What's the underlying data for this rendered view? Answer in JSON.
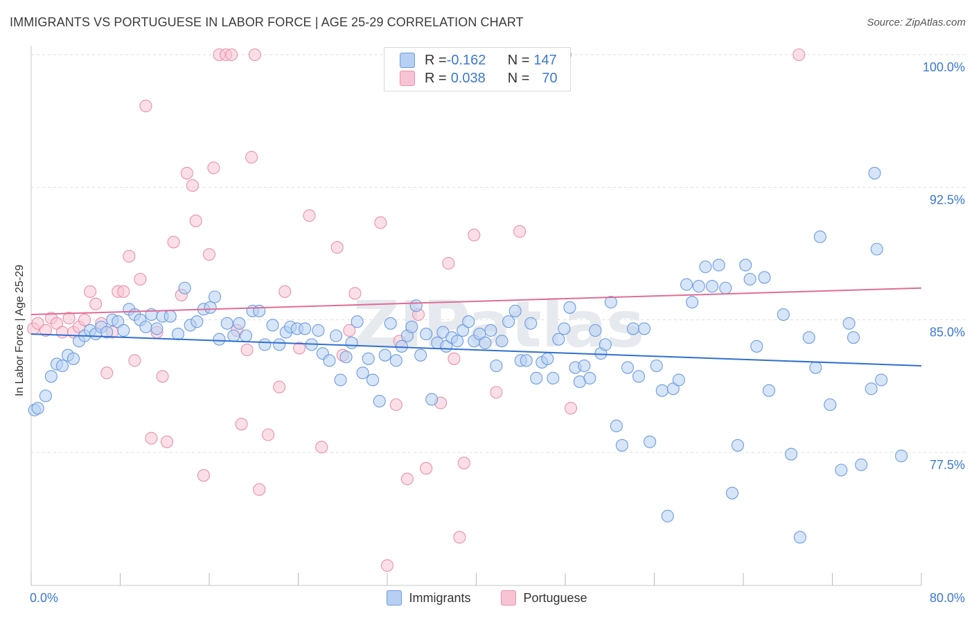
{
  "title": "IMMIGRANTS VS PORTUGUESE IN LABOR FORCE | AGE 25-29 CORRELATION CHART",
  "source": "Source: ZipAtlas.com",
  "watermark": "ZIPatlas",
  "colors": {
    "blue_fill": "#b7cff2",
    "blue_stroke": "#6a9be0",
    "blue_line": "#2f6fd0",
    "pink_fill": "#f7c4d4",
    "pink_stroke": "#e98fab",
    "pink_line": "#e06c93",
    "tick_text": "#3a78d4",
    "grid": "#dddddd"
  },
  "legend": {
    "rows": [
      {
        "r_label": "R = ",
        "r_value": "-0.162",
        "n_label": "N = ",
        "n_value": "147"
      },
      {
        "r_label": "R = ",
        "r_value": "0.038",
        "n_label": "N = ",
        "n_value": "70"
      }
    ]
  },
  "bottom_legend": [
    "Immigrants",
    "Portuguese"
  ],
  "chart_data": {
    "type": "scatter",
    "title": "IMMIGRANTS VS PORTUGUESE IN LABOR FORCE | AGE 25-29 CORRELATION CHART",
    "xlabel": "",
    "ylabel": "In Labor Force | Age 25-29",
    "xlim": [
      0,
      80
    ],
    "ylim": [
      71.0,
      101.0
    ],
    "x_tick_labels": [
      "0.0%",
      "80.0%"
    ],
    "y_ticks": [
      77.5,
      85.0,
      92.5,
      100.0
    ],
    "y_tick_labels": [
      "77.5%",
      "85.0%",
      "92.5%",
      "100.0%"
    ],
    "grid": "horizontal dashed",
    "legend_position": "top-center",
    "series": [
      {
        "name": "Immigrants",
        "trend": [
          [
            0,
            84.2
          ],
          [
            80,
            82.4
          ]
        ],
        "points": [
          [
            0.3,
            79.9
          ],
          [
            0.6,
            80.0
          ],
          [
            1.3,
            80.7
          ],
          [
            1.8,
            81.8
          ],
          [
            2.3,
            82.5
          ],
          [
            2.8,
            82.4
          ],
          [
            3.3,
            83.0
          ],
          [
            3.8,
            82.8
          ],
          [
            4.3,
            83.8
          ],
          [
            4.8,
            84.1
          ],
          [
            5.3,
            84.4
          ],
          [
            5.8,
            84.2
          ],
          [
            6.3,
            84.6
          ],
          [
            6.8,
            84.3
          ],
          [
            7.3,
            85.0
          ],
          [
            7.8,
            84.9
          ],
          [
            8.3,
            84.4
          ],
          [
            8.8,
            85.6
          ],
          [
            9.3,
            85.3
          ],
          [
            9.8,
            85.0
          ],
          [
            10.3,
            84.6
          ],
          [
            10.8,
            85.3
          ],
          [
            11.3,
            84.5
          ],
          [
            11.8,
            85.2
          ],
          [
            12.5,
            85.2
          ],
          [
            13.2,
            84.2
          ],
          [
            13.8,
            86.8
          ],
          [
            14.3,
            84.7
          ],
          [
            14.9,
            84.9
          ],
          [
            15.5,
            85.6
          ],
          [
            16.1,
            85.7
          ],
          [
            16.5,
            86.3
          ],
          [
            16.9,
            83.9
          ],
          [
            17.6,
            84.8
          ],
          [
            18.2,
            84.1
          ],
          [
            18.7,
            84.8
          ],
          [
            19.3,
            84.1
          ],
          [
            19.9,
            85.5
          ],
          [
            20.5,
            85.5
          ],
          [
            21.0,
            83.6
          ],
          [
            21.7,
            84.7
          ],
          [
            22.3,
            83.6
          ],
          [
            22.9,
            84.3
          ],
          [
            23.3,
            84.6
          ],
          [
            23.9,
            84.5
          ],
          [
            24.6,
            84.5
          ],
          [
            25.2,
            83.6
          ],
          [
            25.8,
            84.4
          ],
          [
            26.2,
            83.1
          ],
          [
            26.8,
            82.7
          ],
          [
            27.4,
            84.1
          ],
          [
            27.8,
            81.6
          ],
          [
            28.3,
            82.9
          ],
          [
            28.8,
            83.7
          ],
          [
            29.3,
            84.9
          ],
          [
            29.8,
            82.0
          ],
          [
            30.3,
            82.8
          ],
          [
            30.7,
            81.6
          ],
          [
            31.3,
            80.4
          ],
          [
            31.8,
            83.0
          ],
          [
            32.3,
            84.8
          ],
          [
            32.8,
            82.7
          ],
          [
            33.3,
            83.5
          ],
          [
            33.8,
            84.1
          ],
          [
            34.2,
            84.6
          ],
          [
            34.6,
            85.8
          ],
          [
            35.0,
            83.0
          ],
          [
            35.5,
            84.2
          ],
          [
            36.0,
            80.5
          ],
          [
            36.5,
            83.7
          ],
          [
            37.0,
            84.3
          ],
          [
            37.3,
            83.5
          ],
          [
            37.8,
            84.0
          ],
          [
            38.3,
            83.8
          ],
          [
            38.8,
            84.4
          ],
          [
            39.3,
            84.9
          ],
          [
            39.8,
            83.8
          ],
          [
            40.3,
            84.2
          ],
          [
            40.8,
            83.7
          ],
          [
            41.3,
            84.4
          ],
          [
            41.8,
            82.4
          ],
          [
            42.3,
            83.8
          ],
          [
            42.9,
            84.9
          ],
          [
            43.5,
            85.5
          ],
          [
            44.0,
            82.7
          ],
          [
            44.5,
            82.7
          ],
          [
            44.9,
            84.8
          ],
          [
            45.4,
            81.7
          ],
          [
            45.9,
            82.6
          ],
          [
            46.4,
            82.8
          ],
          [
            46.9,
            81.7
          ],
          [
            47.4,
            83.9
          ],
          [
            47.9,
            84.5
          ],
          [
            48.4,
            85.7
          ],
          [
            48.9,
            82.3
          ],
          [
            49.3,
            81.5
          ],
          [
            49.7,
            82.4
          ],
          [
            50.2,
            81.7
          ],
          [
            50.7,
            84.4
          ],
          [
            51.2,
            83.1
          ],
          [
            51.6,
            83.6
          ],
          [
            52.1,
            86.0
          ],
          [
            52.6,
            79.0
          ],
          [
            53.1,
            77.9
          ],
          [
            53.6,
            82.3
          ],
          [
            54.1,
            84.5
          ],
          [
            54.6,
            81.8
          ],
          [
            55.1,
            84.5
          ],
          [
            55.6,
            78.1
          ],
          [
            56.2,
            82.4
          ],
          [
            56.7,
            81.0
          ],
          [
            57.2,
            73.9
          ],
          [
            57.7,
            81.1
          ],
          [
            58.2,
            81.6
          ],
          [
            58.9,
            87.0
          ],
          [
            59.4,
            86.0
          ],
          [
            60.0,
            86.9
          ],
          [
            60.6,
            88.0
          ],
          [
            61.2,
            86.9
          ],
          [
            61.8,
            88.1
          ],
          [
            62.4,
            86.8
          ],
          [
            63.0,
            75.2
          ],
          [
            63.5,
            77.9
          ],
          [
            64.2,
            88.1
          ],
          [
            64.6,
            87.3
          ],
          [
            65.2,
            83.5
          ],
          [
            65.9,
            87.4
          ],
          [
            66.3,
            81.0
          ],
          [
            67.6,
            85.3
          ],
          [
            68.3,
            77.4
          ],
          [
            69.1,
            72.7
          ],
          [
            69.9,
            84.0
          ],
          [
            70.5,
            82.3
          ],
          [
            70.9,
            89.7
          ],
          [
            71.8,
            80.2
          ],
          [
            72.8,
            76.5
          ],
          [
            73.5,
            84.8
          ],
          [
            73.9,
            84.0
          ],
          [
            74.6,
            76.8
          ],
          [
            75.5,
            81.1
          ],
          [
            76.0,
            89.0
          ],
          [
            76.4,
            81.6
          ],
          [
            78.2,
            77.3
          ],
          [
            75.8,
            93.3
          ]
        ]
      },
      {
        "name": "Portuguese",
        "trend": [
          [
            0,
            85.3
          ],
          [
            80,
            86.8
          ]
        ],
        "points": [
          [
            0.2,
            84.5
          ],
          [
            0.6,
            84.8
          ],
          [
            1.3,
            84.4
          ],
          [
            1.8,
            85.1
          ],
          [
            2.3,
            84.8
          ],
          [
            2.8,
            84.3
          ],
          [
            3.4,
            85.1
          ],
          [
            3.8,
            84.3
          ],
          [
            4.3,
            84.6
          ],
          [
            4.8,
            85.0
          ],
          [
            5.3,
            86.6
          ],
          [
            5.8,
            85.9
          ],
          [
            6.3,
            84.8
          ],
          [
            6.8,
            82.0
          ],
          [
            7.3,
            84.3
          ],
          [
            7.8,
            86.6
          ],
          [
            8.3,
            86.6
          ],
          [
            8.8,
            88.6
          ],
          [
            9.3,
            82.7
          ],
          [
            9.8,
            87.3
          ],
          [
            10.3,
            97.1
          ],
          [
            10.8,
            78.3
          ],
          [
            11.3,
            84.3
          ],
          [
            11.8,
            81.8
          ],
          [
            12.2,
            78.1
          ],
          [
            12.8,
            89.4
          ],
          [
            13.5,
            86.4
          ],
          [
            14.0,
            93.3
          ],
          [
            14.5,
            92.6
          ],
          [
            14.8,
            90.6
          ],
          [
            15.5,
            76.2
          ],
          [
            16.0,
            88.7
          ],
          [
            16.4,
            93.6
          ],
          [
            16.9,
            100.0
          ],
          [
            17.5,
            100.0
          ],
          [
            18.0,
            100.0
          ],
          [
            18.5,
            84.4
          ],
          [
            18.9,
            79.1
          ],
          [
            19.4,
            83.3
          ],
          [
            19.8,
            94.2
          ],
          [
            20.1,
            100.0
          ],
          [
            20.5,
            75.4
          ],
          [
            21.3,
            78.5
          ],
          [
            22.3,
            81.2
          ],
          [
            22.8,
            86.6
          ],
          [
            24.1,
            83.4
          ],
          [
            25.0,
            90.9
          ],
          [
            26.1,
            77.8
          ],
          [
            27.5,
            89.1
          ],
          [
            28.0,
            83.0
          ],
          [
            28.6,
            84.4
          ],
          [
            29.1,
            86.5
          ],
          [
            31.4,
            90.5
          ],
          [
            32.0,
            71.1
          ],
          [
            32.8,
            80.2
          ],
          [
            33.1,
            83.8
          ],
          [
            33.8,
            76.0
          ],
          [
            34.8,
            85.3
          ],
          [
            35.5,
            76.6
          ],
          [
            36.8,
            80.3
          ],
          [
            37.5,
            88.2
          ],
          [
            38.0,
            82.8
          ],
          [
            38.5,
            72.7
          ],
          [
            38.9,
            76.9
          ],
          [
            39.8,
            89.8
          ],
          [
            41.8,
            80.9
          ],
          [
            43.9,
            90.0
          ],
          [
            48.5,
            80.0
          ],
          [
            48.0,
            100.0
          ],
          [
            69.0,
            100.0
          ]
        ]
      }
    ]
  }
}
